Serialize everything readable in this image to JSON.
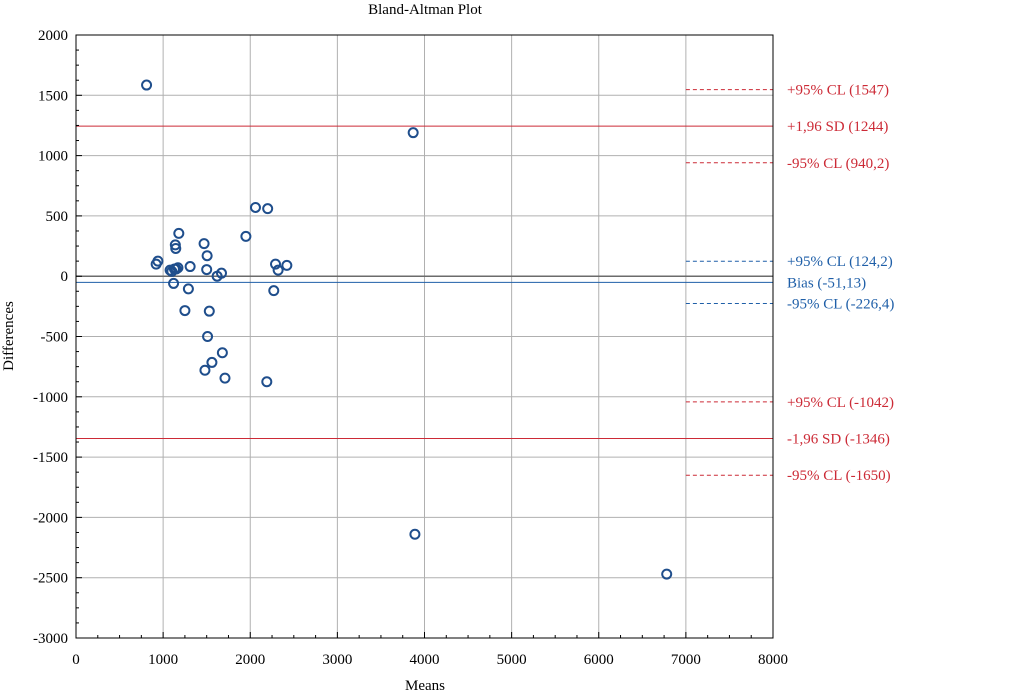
{
  "chart_data": {
    "type": "scatter",
    "title": "Bland-Altman Plot",
    "xlabel": "Means",
    "ylabel": "Differences",
    "xlim": [
      0,
      8000
    ],
    "ylim": [
      -3000,
      2000
    ],
    "x_ticks": [
      "0",
      "1000",
      "2000",
      "3000",
      "4000",
      "5000",
      "6000",
      "7000",
      "8000"
    ],
    "y_ticks": [
      "2000",
      "1500",
      "1000",
      "500",
      "0",
      "-500",
      "-1000",
      "-1500",
      "-2000",
      "-2500",
      "-3000"
    ],
    "grid": true,
    "colors": {
      "points": "#1f4e8c",
      "sd_lines": "#cc2a36",
      "bias_line": "#1f5fa8",
      "zero_line": "#6b6b6b",
      "grid": "#b0b0b0"
    },
    "points": [
      {
        "x": 810,
        "y": 1585
      },
      {
        "x": 920,
        "y": 100
      },
      {
        "x": 940,
        "y": 125
      },
      {
        "x": 1080,
        "y": 50
      },
      {
        "x": 1100,
        "y": 40
      },
      {
        "x": 1120,
        "y": -60
      },
      {
        "x": 1130,
        "y": 60
      },
      {
        "x": 1140,
        "y": 260
      },
      {
        "x": 1145,
        "y": 230
      },
      {
        "x": 1150,
        "y": 60
      },
      {
        "x": 1170,
        "y": 70
      },
      {
        "x": 1180,
        "y": 355
      },
      {
        "x": 1250,
        "y": -285
      },
      {
        "x": 1290,
        "y": -105
      },
      {
        "x": 1310,
        "y": 80
      },
      {
        "x": 1470,
        "y": 270
      },
      {
        "x": 1480,
        "y": -780
      },
      {
        "x": 1500,
        "y": 55
      },
      {
        "x": 1505,
        "y": 170
      },
      {
        "x": 1510,
        "y": -500
      },
      {
        "x": 1530,
        "y": -290
      },
      {
        "x": 1560,
        "y": -715
      },
      {
        "x": 1620,
        "y": 0
      },
      {
        "x": 1670,
        "y": 25
      },
      {
        "x": 1680,
        "y": -635
      },
      {
        "x": 1710,
        "y": -845
      },
      {
        "x": 1950,
        "y": 330
      },
      {
        "x": 2060,
        "y": 570
      },
      {
        "x": 2190,
        "y": -875
      },
      {
        "x": 2200,
        "y": 560
      },
      {
        "x": 2270,
        "y": -120
      },
      {
        "x": 2290,
        "y": 100
      },
      {
        "x": 2320,
        "y": 50
      },
      {
        "x": 2420,
        "y": 90
      },
      {
        "x": 3870,
        "y": 1190
      },
      {
        "x": 3890,
        "y": -2140
      },
      {
        "x": 6780,
        "y": -2470
      }
    ],
    "reference_lines": [
      {
        "label": "+95% CL (1547)",
        "y": 1547,
        "style": "dashed",
        "color": "sd",
        "span": "short"
      },
      {
        "label": "+1,96 SD (1244)",
        "y": 1244,
        "style": "solid",
        "color": "sd",
        "span": "full"
      },
      {
        "label": "-95% CL (940,2)",
        "y": 940.2,
        "style": "dashed",
        "color": "sd",
        "span": "short"
      },
      {
        "label": "+95% CL (124,2)",
        "y": 124.2,
        "style": "dashed",
        "color": "bias",
        "span": "short"
      },
      {
        "label": "Bias (-51,13)",
        "y": -51.13,
        "style": "solid",
        "color": "bias",
        "span": "full"
      },
      {
        "label": "-95% CL (-226,4)",
        "y": -226.4,
        "style": "dashed",
        "color": "bias",
        "span": "short"
      },
      {
        "label": "+95% CL (-1042)",
        "y": -1042,
        "style": "dashed",
        "color": "sd",
        "span": "short"
      },
      {
        "label": "-1,96 SD (-1346)",
        "y": -1346,
        "style": "solid",
        "color": "sd",
        "span": "full"
      },
      {
        "label": "-95% CL (-1650)",
        "y": -1650,
        "style": "dashed",
        "color": "sd",
        "span": "short"
      }
    ],
    "zero_line": {
      "y": 0
    }
  }
}
